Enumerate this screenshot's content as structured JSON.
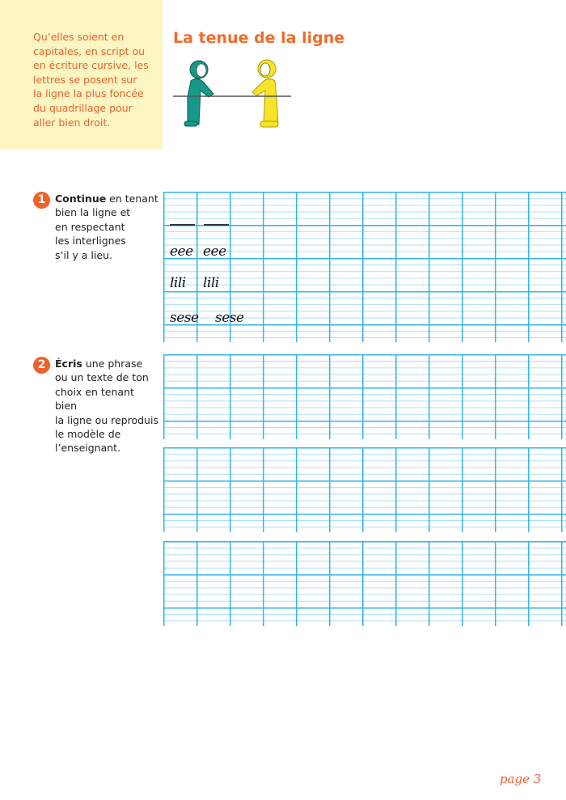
{
  "intro_text": [
    "Qu’elles soient en",
    "capitales, en script ou",
    "en écriture cursive, les",
    "lettres se posent sur",
    "la ligne la plus foncée",
    "du quadrillage pour",
    "aller bien droit."
  ],
  "title": "La tenue de la ligne",
  "exercises": [
    {
      "number": "1",
      "bold": "Continue",
      "lines": [
        " en tenant",
        "bien la ligne et",
        "en respectant",
        "les interlignes",
        "s’il y a lieu."
      ]
    },
    {
      "number": "2",
      "bold": "Écris",
      "lines": [
        " une phrase",
        "ou un texte de ton",
        "choix en tenant bien",
        "la ligne ou reproduis",
        "le modèle de",
        "l’enseignant."
      ]
    }
  ],
  "models": [
    "eee",
    "eee",
    "lili",
    "lili",
    "sese",
    "sese"
  ],
  "page_number": "page 3",
  "colors": {
    "accent": "#f26b2a",
    "grid_major": "#35b4e8",
    "grid_minor": "#a9def4",
    "sidebar_bg": "#fdf6c3"
  }
}
